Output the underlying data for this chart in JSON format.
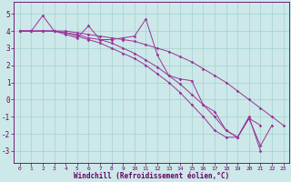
{
  "background_color": "#cce8e8",
  "grid_color": "#aad4d4",
  "line_color": "#993399",
  "xlabel": "Windchill (Refroidissement éolien,°C)",
  "xlim": [
    -0.5,
    23.5
  ],
  "ylim": [
    -3.7,
    5.7
  ],
  "yticks": [
    -3,
    -2,
    -1,
    0,
    1,
    2,
    3,
    4,
    5
  ],
  "xticks": [
    0,
    1,
    2,
    3,
    4,
    5,
    6,
    7,
    8,
    9,
    10,
    11,
    12,
    13,
    14,
    15,
    16,
    17,
    18,
    19,
    20,
    21,
    22,
    23
  ],
  "series": [
    [
      4.0,
      4.0,
      4.9,
      4.0,
      3.8,
      3.6,
      4.3,
      3.5,
      3.5,
      3.6,
      3.7,
      4.7,
      2.6,
      1.4,
      1.2,
      1.1,
      -0.3,
      -0.7,
      -1.8,
      -2.2,
      -1.1,
      -2.7,
      -1.5,
      null
    ],
    [
      4.0,
      4.0,
      4.0,
      4.0,
      4.0,
      3.9,
      3.8,
      3.7,
      3.6,
      3.5,
      3.4,
      3.2,
      3.0,
      2.8,
      2.5,
      2.2,
      1.8,
      1.4,
      1.0,
      0.5,
      0.0,
      -0.5,
      -1.0,
      -1.5
    ],
    [
      4.0,
      4.0,
      4.0,
      4.0,
      3.9,
      3.7,
      3.5,
      3.3,
      3.0,
      2.7,
      2.4,
      2.0,
      1.5,
      1.0,
      0.4,
      -0.3,
      -1.0,
      -1.8,
      -2.2,
      -2.2,
      -1.0,
      -3.0,
      null,
      null
    ],
    [
      4.0,
      4.0,
      4.0,
      4.0,
      3.9,
      3.8,
      3.6,
      3.5,
      3.3,
      3.0,
      2.7,
      2.3,
      1.9,
      1.4,
      0.9,
      0.3,
      -0.3,
      -1.0,
      -1.8,
      -2.2,
      -1.1,
      -1.5,
      null,
      null
    ]
  ],
  "marker": "D",
  "markersize": 1.8,
  "linewidth": 0.7,
  "xlabel_fontsize": 5.5,
  "tick_fontsize": 4.5,
  "ytick_fontsize": 5.5
}
